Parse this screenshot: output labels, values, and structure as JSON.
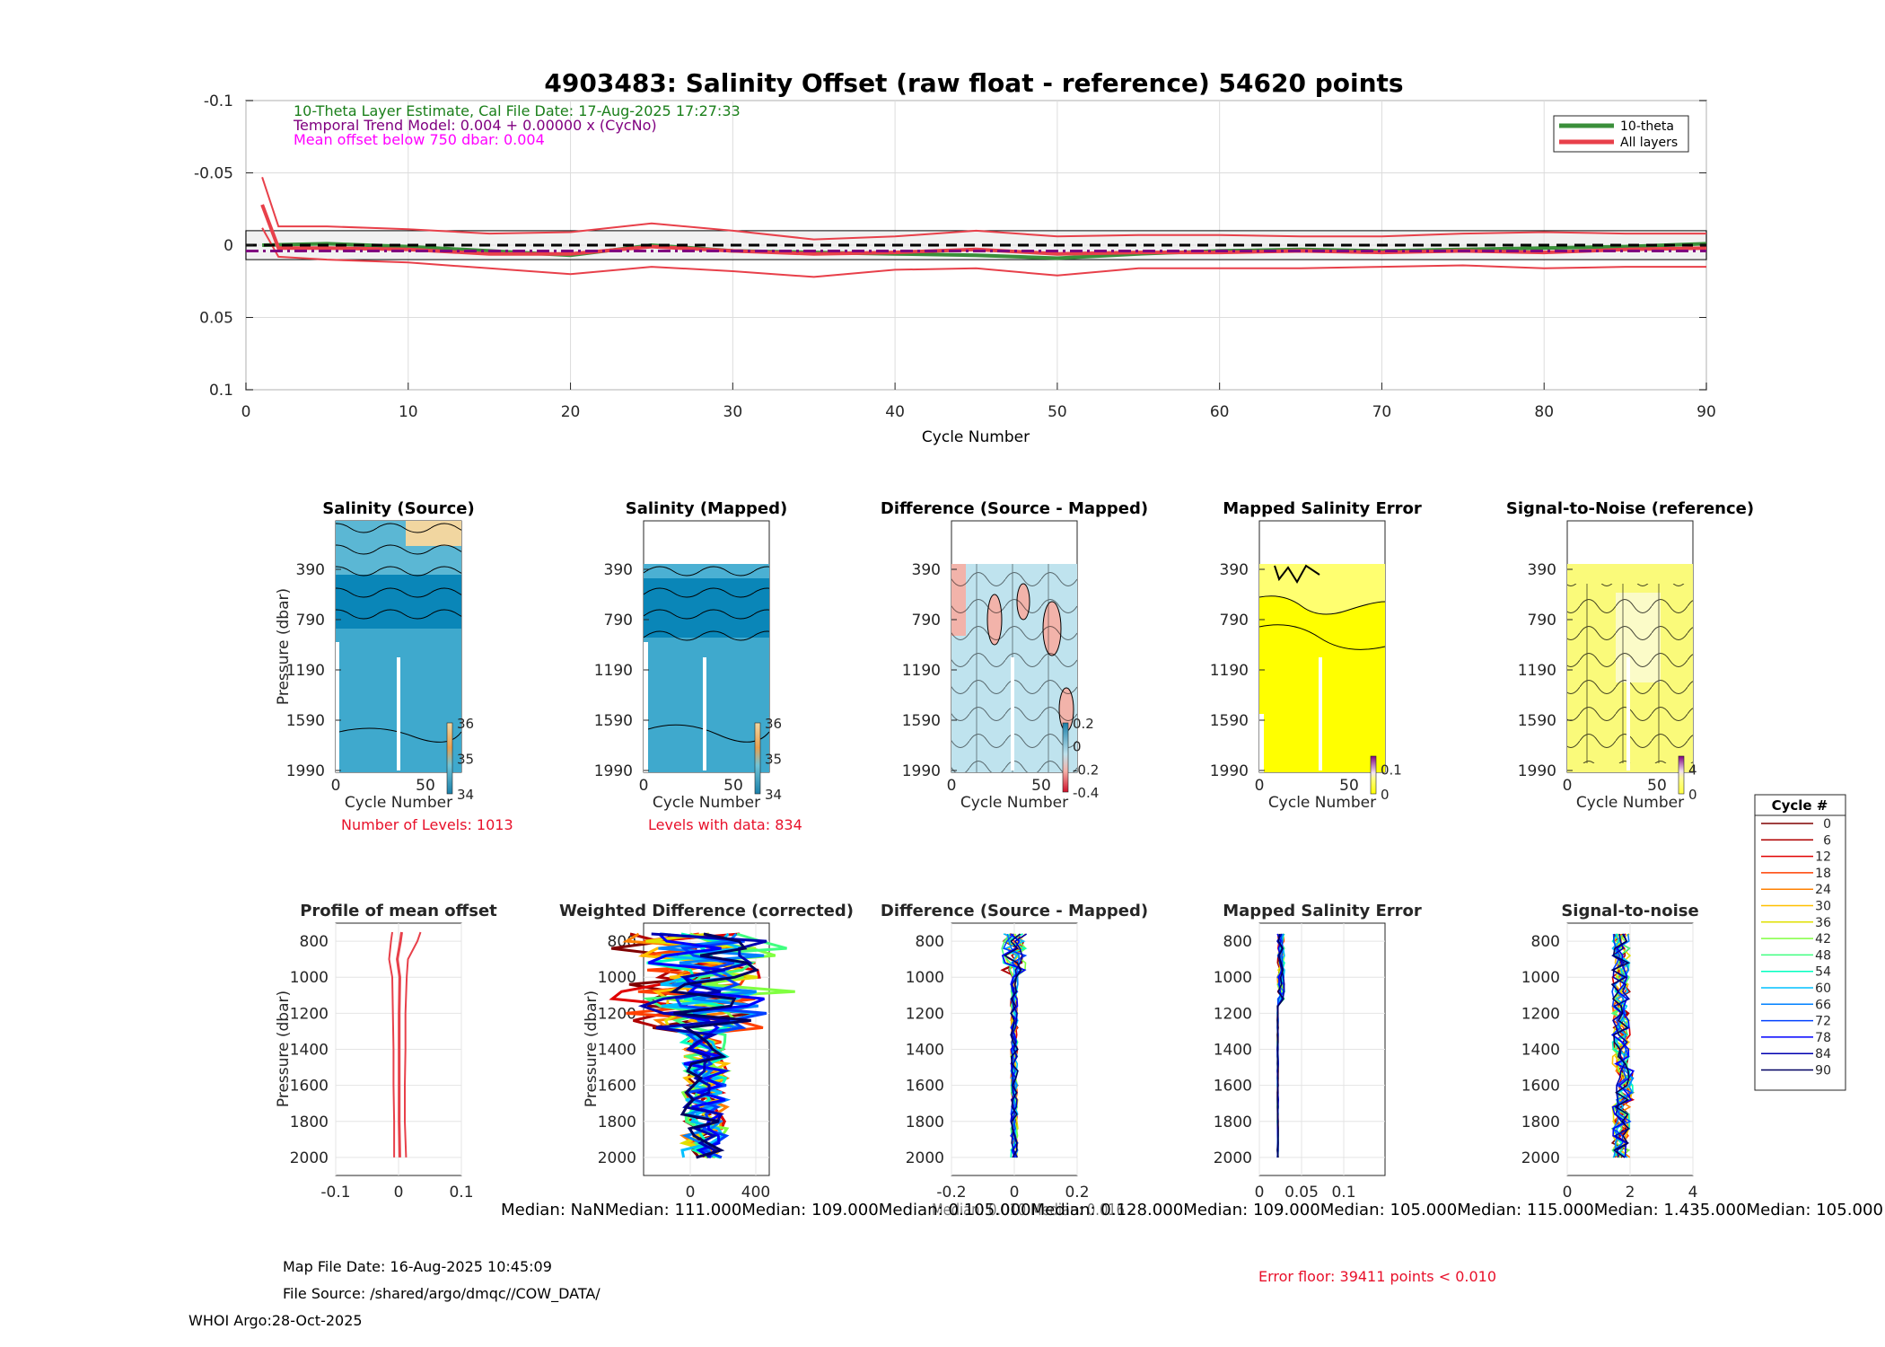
{
  "chart_data": [
    {
      "type": "line",
      "title": "4903483: Salinity Offset (raw float - reference)   54620 points",
      "xlabel": "Cycle Number",
      "xlim": [
        0,
        90
      ],
      "ylim": [
        -0.1,
        0.1
      ],
      "y_reversed": true,
      "xticks": [
        0,
        10,
        20,
        30,
        40,
        50,
        60,
        70,
        80,
        90
      ],
      "yticks": [
        -0.1,
        -0.05,
        0,
        0.05,
        0.1
      ],
      "ytick_labels": [
        "-0.1",
        "-0.05",
        "0",
        "0.05",
        "0.1"
      ],
      "annotations": [
        {
          "text": "10-Theta Layer Estimate, Cal File Date: 17-Aug-2025 17:27:33",
          "color": "#1a7f1a"
        },
        {
          "text": "Temporal Trend Model: 0.004 + 0.00000 x (CycNo)",
          "color": "#800080"
        },
        {
          "text": "Mean offset below 750 dbar: 0.004",
          "color": "#ff00ff"
        }
      ],
      "legend": [
        {
          "name": "10-theta",
          "color": "#3a8f3a"
        },
        {
          "name": "All layers",
          "color": "#e8404a"
        }
      ],
      "series": [
        {
          "name": "10-theta",
          "color": "#3a8f3a",
          "x": [
            1,
            5,
            10,
            15,
            20,
            25,
            30,
            35,
            40,
            45,
            50,
            55,
            60,
            65,
            70,
            75,
            80,
            85,
            90
          ],
          "y": [
            0.0,
            -0.001,
            0.001,
            0.004,
            0.007,
            0.0,
            0.004,
            0.005,
            0.006,
            0.007,
            0.009,
            0.006,
            0.004,
            0.003,
            0.004,
            0.003,
            0.002,
            0.001,
            -0.001
          ]
        },
        {
          "name": "All layers",
          "color": "#e8404a",
          "x": [
            1,
            2,
            5,
            10,
            15,
            20,
            25,
            30,
            35,
            40,
            45,
            50,
            55,
            60,
            65,
            70,
            75,
            80,
            85,
            90
          ],
          "y": [
            -0.028,
            0.002,
            0.002,
            0.003,
            0.006,
            0.006,
            0.001,
            0.004,
            0.006,
            0.005,
            0.003,
            0.006,
            0.005,
            0.005,
            0.004,
            0.005,
            0.004,
            0.005,
            0.003,
            0.002
          ]
        },
        {
          "name": "All layers upper",
          "color": "#e8404a",
          "x": [
            1,
            2,
            5,
            10,
            15,
            20,
            25,
            30,
            35,
            40,
            45,
            50,
            55,
            60,
            65,
            70,
            75,
            80,
            85,
            90
          ],
          "y": [
            -0.047,
            -0.013,
            -0.013,
            -0.011,
            -0.008,
            -0.009,
            -0.015,
            -0.01,
            -0.004,
            -0.006,
            -0.01,
            -0.006,
            -0.007,
            -0.007,
            -0.006,
            -0.006,
            -0.008,
            -0.009,
            -0.008,
            -0.008
          ]
        },
        {
          "name": "All layers lower",
          "color": "#e8404a",
          "x": [
            1,
            2,
            5,
            10,
            15,
            20,
            25,
            30,
            35,
            40,
            45,
            50,
            55,
            60,
            65,
            70,
            75,
            80,
            85,
            90
          ],
          "y": [
            -0.012,
            0.008,
            0.01,
            0.012,
            0.016,
            0.02,
            0.015,
            0.018,
            0.022,
            0.017,
            0.016,
            0.021,
            0.016,
            0.016,
            0.016,
            0.015,
            0.014,
            0.016,
            0.015,
            0.015
          ]
        }
      ],
      "reference_lines": {
        "zero_dashed": 0,
        "trend_dash_dot": 0.004,
        "band": [
          -0.01,
          0.01
        ]
      }
    },
    {
      "type": "heatmap",
      "title": "Salinity (Source)",
      "xlabel": "Cycle Number",
      "ylabel": "Pressure (dbar)",
      "yticks": [
        "390",
        "790",
        "1190",
        "1590",
        "1990"
      ],
      "xticks": [
        "0",
        "50"
      ],
      "colorbar_ticks": [
        "36",
        "35",
        "34"
      ],
      "footnote": "Number of Levels: 1013"
    },
    {
      "type": "heatmap",
      "title": "Salinity (Mapped)",
      "xlabel": "Cycle Number",
      "yticks": [
        "390",
        "790",
        "1190",
        "1590",
        "1990"
      ],
      "xticks": [
        "0",
        "50"
      ],
      "colorbar_ticks": [
        "36",
        "35",
        "34"
      ],
      "footnote": "Levels with data: 834"
    },
    {
      "type": "heatmap",
      "title": "Difference (Source - Mapped)",
      "xlabel": "Cycle Number",
      "yticks": [
        "390",
        "790",
        "1190",
        "1590",
        "1990"
      ],
      "xticks": [
        "0",
        "50"
      ],
      "colorbar_ticks": [
        "0.2",
        "0",
        "-0.2",
        "-0.4"
      ]
    },
    {
      "type": "heatmap",
      "title": "Mapped Salinity Error",
      "xlabel": "Cycle Number",
      "yticks": [
        "390",
        "790",
        "1190",
        "1590",
        "1990"
      ],
      "xticks": [
        "0",
        "50"
      ],
      "colorbar_ticks": [
        "0.1",
        "0"
      ]
    },
    {
      "type": "heatmap",
      "title": "Signal-to-Noise (reference)",
      "xlabel": "Cycle Number",
      "yticks": [
        "390",
        "790",
        "1190",
        "1590",
        "1990"
      ],
      "xticks": [
        "0",
        "50"
      ],
      "colorbar_ticks": [
        "4",
        "0"
      ]
    },
    {
      "type": "line",
      "title": "Profile of mean offset",
      "ylabel": "Pressure (dbar)",
      "xlim": [
        -0.1,
        0.1
      ],
      "ylim": [
        700,
        2100
      ],
      "xtick_labels": [
        "-0.1",
        "0",
        "0.1"
      ],
      "ytick_labels": [
        "800",
        "1000",
        "1200",
        "1400",
        "1600",
        "1800",
        "2000"
      ],
      "series": [
        {
          "name": "mean",
          "y": [
            750,
            800,
            900,
            1000,
            1200,
            1400,
            1600,
            1800,
            2000
          ],
          "x": [
            0.005,
            0.003,
            -0.002,
            0.002,
            0.001,
            0.001,
            0.001,
            0.001,
            0.002
          ]
        },
        {
          "name": "lower",
          "y": [
            750,
            800,
            900,
            1000,
            1200,
            1400,
            1600,
            1800,
            2000
          ],
          "x": [
            -0.01,
            -0.012,
            -0.015,
            -0.01,
            -0.009,
            -0.008,
            -0.008,
            -0.007,
            -0.007
          ]
        },
        {
          "name": "upper",
          "y": [
            750,
            800,
            900,
            1000,
            1200,
            1400,
            1600,
            1800,
            2000
          ],
          "x": [
            0.035,
            0.03,
            0.015,
            0.013,
            0.011,
            0.011,
            0.01,
            0.01,
            0.012
          ]
        }
      ]
    },
    {
      "type": "scatter",
      "title": "Weighted Difference (corrected)",
      "ylabel": "Pressure (dbar)",
      "xtick_labels": [
        "0",
        "400"
      ],
      "ytick_labels": [
        "800",
        "1000",
        "1200",
        "1400",
        "1600",
        "1800",
        "2000"
      ]
    },
    {
      "type": "scatter",
      "title": "Difference (Source - Mapped)",
      "xtick_labels": [
        "-0.2",
        "0",
        "0.2"
      ],
      "ytick_labels": [
        "800",
        "1000",
        "1200",
        "1400",
        "1600",
        "1800",
        "2000"
      ]
    },
    {
      "type": "scatter",
      "title": "Mapped Salinity Error",
      "xtick_labels": [
        "0",
        "0.05",
        "0.1"
      ],
      "ytick_labels": [
        "800",
        "1000",
        "1200",
        "1400",
        "1600",
        "1800",
        "2000"
      ]
    },
    {
      "type": "scatter",
      "title": "Signal-to-noise",
      "xtick_labels": [
        "0",
        "2",
        "4"
      ],
      "ytick_labels": [
        "800",
        "1000",
        "1200",
        "1400",
        "1600",
        "1800",
        "2000"
      ]
    }
  ],
  "cycle_legend": {
    "title": "Cycle #",
    "entries": [
      {
        "label": "0",
        "color": "#800000"
      },
      {
        "label": "6",
        "color": "#b00000"
      },
      {
        "label": "12",
        "color": "#e00000"
      },
      {
        "label": "18",
        "color": "#ff4000"
      },
      {
        "label": "24",
        "color": "#ff8000"
      },
      {
        "label": "30",
        "color": "#ffc000"
      },
      {
        "label": "36",
        "color": "#e0e000"
      },
      {
        "label": "42",
        "color": "#80ff40"
      },
      {
        "label": "48",
        "color": "#40ff80"
      },
      {
        "label": "54",
        "color": "#00ffc0"
      },
      {
        "label": "60",
        "color": "#00c0ff"
      },
      {
        "label": "66",
        "color": "#0080ff"
      },
      {
        "label": "72",
        "color": "#0040ff"
      },
      {
        "label": "78",
        "color": "#0000ff"
      },
      {
        "label": "84",
        "color": "#0000b0"
      },
      {
        "label": "90",
        "color": "#000060"
      }
    ]
  },
  "median_row": "Median:      NaNMedian: 111.000Median: 109.000Median: 0.105.000Median: 0.128.000Median: 109.000Median: 105.000Median: 115.000Median: 1.435.000Median: 105.000",
  "median_overlay": "Median: 0.010 Median: 0.016",
  "footer": {
    "map_file": "Map File Date: 16-Aug-2025 10:45:09",
    "file_source": "File Source: /shared/argo/dmqc//COW_DATA/",
    "whoi": "WHOI Argo:28-Oct-2025",
    "error_floor": "Error floor: 39411 points < 0.010"
  }
}
